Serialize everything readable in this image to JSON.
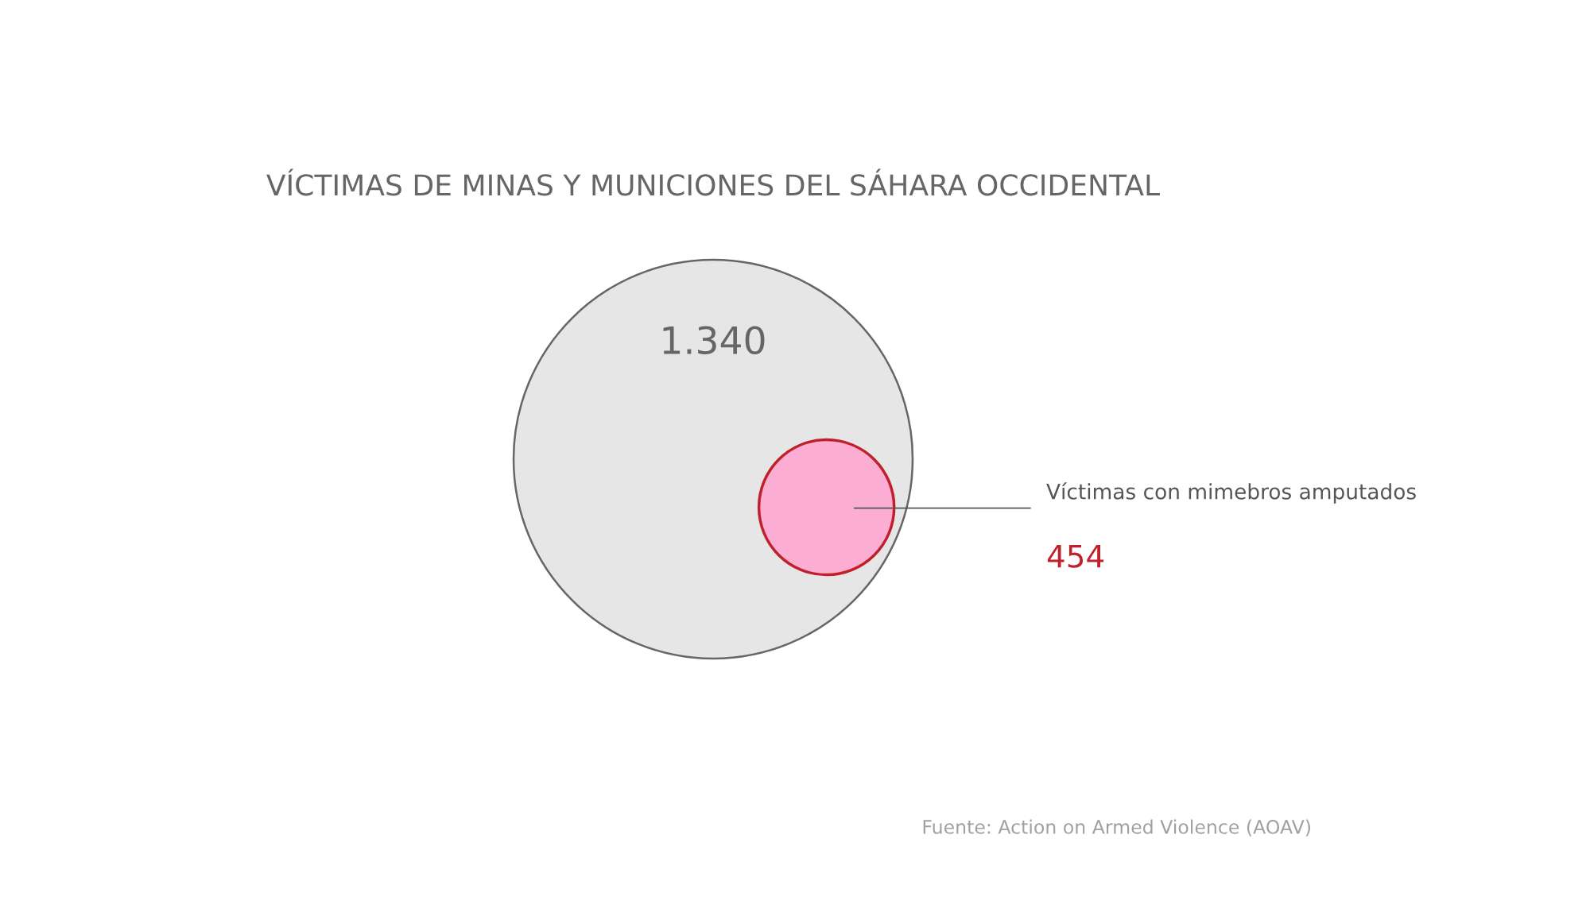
{
  "chart_data": {
    "type": "other",
    "title": "VÍCTIMAS DE MINAS Y MUNICIONES DEL SÁHARA OCCIDENTAL",
    "categories": [
      null,
      "Víctimas con mimebros amputados"
    ],
    "values": [
      1340,
      454
    ],
    "value_labels": [
      "1.340",
      "454"
    ],
    "colors": [
      "#e6e6e6",
      "#fbadd3"
    ],
    "annotations": [
      "Fuente: Action on Armed Violence (AOAV)"
    ]
  }
}
